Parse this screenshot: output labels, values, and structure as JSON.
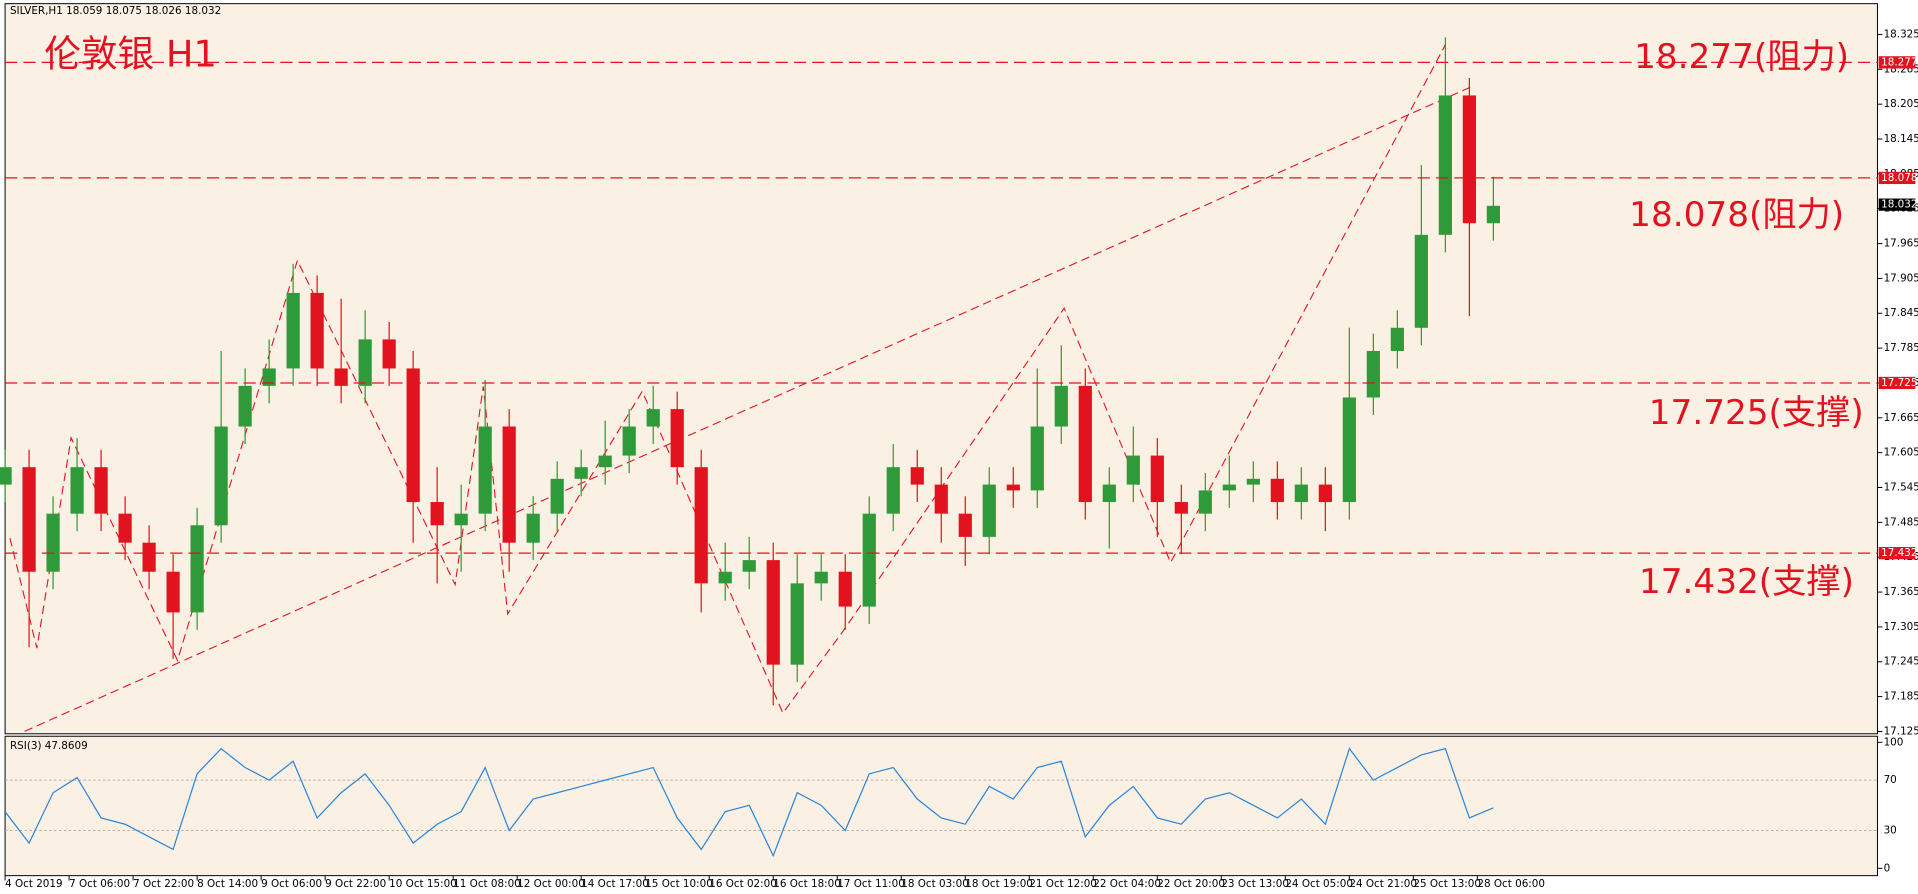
{
  "chart_data": [
    {
      "type": "candlestick",
      "header": "SILVER,H1  18.059 18.075 18.026 18.032",
      "title": "伦敦银 H1",
      "up_color": "#2e9a3a",
      "down_color": "#e3121f",
      "level_color": "#e3121f",
      "x": [
        0,
        6,
        12,
        18,
        24,
        30,
        36,
        42,
        48,
        54,
        60,
        66,
        72,
        78,
        84,
        90,
        96,
        102,
        108,
        114,
        120,
        126,
        132,
        138,
        144,
        150,
        156,
        162,
        168,
        174,
        180,
        186,
        192,
        198,
        204,
        210,
        216,
        222,
        228,
        234,
        240,
        246,
        252,
        258,
        264,
        270,
        276,
        282,
        288,
        294,
        300,
        306,
        312,
        318,
        324,
        330,
        336,
        342,
        348,
        354,
        360,
        366,
        372
      ],
      "open": [
        17.55,
        17.58,
        17.4,
        17.5,
        17.58,
        17.5,
        17.45,
        17.4,
        17.33,
        17.48,
        17.65,
        17.72,
        17.75,
        17.88,
        17.75,
        17.72,
        17.8,
        17.75,
        17.52,
        17.48,
        17.5,
        17.65,
        17.45,
        17.5,
        17.56,
        17.58,
        17.6,
        17.65,
        17.68,
        17.58,
        17.38,
        17.4,
        17.42,
        17.24,
        17.38,
        17.4,
        17.34,
        17.5,
        17.58,
        17.55,
        17.5,
        17.46,
        17.55,
        17.54,
        17.65,
        17.72,
        17.52,
        17.55,
        17.6,
        17.52,
        17.5,
        17.54,
        17.55,
        17.56,
        17.52,
        17.55,
        17.52,
        17.7,
        17.78,
        17.82,
        17.98,
        18.22,
        18.0
      ],
      "high": [
        17.61,
        17.61,
        17.53,
        17.63,
        17.61,
        17.53,
        17.48,
        17.43,
        17.51,
        17.78,
        17.75,
        17.8,
        17.93,
        17.91,
        17.87,
        17.85,
        17.83,
        17.78,
        17.58,
        17.55,
        17.73,
        17.68,
        17.53,
        17.59,
        17.61,
        17.66,
        17.68,
        17.72,
        17.71,
        17.61,
        17.45,
        17.46,
        17.45,
        17.43,
        17.43,
        17.43,
        17.53,
        17.62,
        17.61,
        17.58,
        17.53,
        17.58,
        17.58,
        17.75,
        17.79,
        17.75,
        17.58,
        17.65,
        17.63,
        17.55,
        17.57,
        17.6,
        17.59,
        17.59,
        17.58,
        17.58,
        17.82,
        17.81,
        17.85,
        18.1,
        18.32,
        18.25,
        18.08
      ],
      "low": [
        17.52,
        17.27,
        17.37,
        17.47,
        17.47,
        17.42,
        17.37,
        17.25,
        17.3,
        17.45,
        17.62,
        17.69,
        17.72,
        17.72,
        17.69,
        17.69,
        17.72,
        17.45,
        17.38,
        17.4,
        17.47,
        17.4,
        17.42,
        17.47,
        17.53,
        17.55,
        17.57,
        17.62,
        17.55,
        17.33,
        17.35,
        17.37,
        17.17,
        17.21,
        17.35,
        17.3,
        17.31,
        17.47,
        17.52,
        17.45,
        17.41,
        17.43,
        17.51,
        17.51,
        17.62,
        17.49,
        17.44,
        17.52,
        17.46,
        17.43,
        17.47,
        17.51,
        17.52,
        17.49,
        17.49,
        17.47,
        17.49,
        17.67,
        17.75,
        17.79,
        17.95,
        17.84,
        17.97
      ],
      "close": [
        17.58,
        17.4,
        17.5,
        17.58,
        17.5,
        17.45,
        17.4,
        17.33,
        17.48,
        17.65,
        17.72,
        17.75,
        17.88,
        17.75,
        17.72,
        17.8,
        17.75,
        17.52,
        17.48,
        17.5,
        17.65,
        17.45,
        17.5,
        17.56,
        17.58,
        17.6,
        17.65,
        17.68,
        17.58,
        17.38,
        17.4,
        17.42,
        17.24,
        17.38,
        17.4,
        17.34,
        17.5,
        17.58,
        17.55,
        17.5,
        17.46,
        17.55,
        17.54,
        17.65,
        17.72,
        17.52,
        17.55,
        17.6,
        17.52,
        17.5,
        17.54,
        17.55,
        17.56,
        17.52,
        17.55,
        17.52,
        17.7,
        17.78,
        17.82,
        17.98,
        18.22,
        18.0,
        18.03
      ],
      "current_price": 18.032,
      "levels": [
        {
          "value": 18.277,
          "label": "18.277(阻力)"
        },
        {
          "value": 18.078,
          "label": "18.078(阻力)"
        },
        {
          "value": 17.725,
          "label": "17.725(支撑)"
        },
        {
          "value": 17.432,
          "label": "17.432(支撑)"
        }
      ],
      "xlim": [
        0,
        468
      ],
      "xticks": [
        {
          "value": 0,
          "label": "4 Oct 2019"
        },
        {
          "value": 16,
          "label": "7 Oct 06:00"
        },
        {
          "value": 32,
          "label": "7 Oct 22:00"
        },
        {
          "value": 48,
          "label": "8 Oct 14:00"
        },
        {
          "value": 64,
          "label": "9 Oct 06:00"
        },
        {
          "value": 80,
          "label": "9 Oct 22:00"
        },
        {
          "value": 96,
          "label": "10 Oct 15:00"
        },
        {
          "value": 112,
          "label": "11 Oct 08:00"
        },
        {
          "value": 128,
          "label": "12 Oct 00:00"
        },
        {
          "value": 144,
          "label": "14 Oct 17:00"
        },
        {
          "value": 160,
          "label": "15 Oct 10:00"
        },
        {
          "value": 176,
          "label": "16 Oct 02:00"
        },
        {
          "value": 192,
          "label": "16 Oct 18:00"
        },
        {
          "value": 208,
          "label": "17 Oct 11:00"
        },
        {
          "value": 224,
          "label": "18 Oct 03:00"
        },
        {
          "value": 240,
          "label": "18 Oct 19:00"
        },
        {
          "value": 256,
          "label": "21 Oct 12:00"
        },
        {
          "value": 272,
          "label": "22 Oct 04:00"
        },
        {
          "value": 288,
          "label": "22 Oct 20:00"
        },
        {
          "value": 304,
          "label": "23 Oct 13:00"
        },
        {
          "value": 320,
          "label": "24 Oct 05:00"
        },
        {
          "value": 336,
          "label": "24 Oct 21:00"
        },
        {
          "value": 352,
          "label": "25 Oct 13:00"
        },
        {
          "value": 368,
          "label": "28 Oct 06:00"
        }
      ],
      "ylim": [
        17.121,
        18.378
      ],
      "yticks": [
        18.325,
        18.265,
        18.205,
        18.145,
        18.085,
        18.025,
        17.965,
        17.905,
        17.845,
        17.785,
        17.725,
        17.665,
        17.605,
        17.545,
        17.485,
        17.425,
        17.365,
        17.305,
        17.245,
        17.185,
        17.125
      ]
    },
    {
      "type": "line",
      "title": "RSI(3) 47.8609",
      "color": "#2a86d8",
      "x": [
        0,
        6,
        12,
        18,
        24,
        30,
        36,
        42,
        48,
        54,
        60,
        66,
        72,
        78,
        84,
        90,
        96,
        102,
        108,
        114,
        120,
        126,
        132,
        138,
        144,
        150,
        156,
        162,
        168,
        174,
        180,
        186,
        192,
        198,
        204,
        210,
        216,
        222,
        228,
        234,
        240,
        246,
        252,
        258,
        264,
        270,
        276,
        282,
        288,
        294,
        300,
        306,
        312,
        318,
        324,
        330,
        336,
        342,
        348,
        354,
        360,
        366,
        372
      ],
      "values": [
        45,
        20,
        60,
        72,
        40,
        35,
        25,
        15,
        75,
        95,
        80,
        70,
        85,
        40,
        60,
        75,
        50,
        20,
        35,
        45,
        80,
        30,
        55,
        60,
        65,
        70,
        75,
        80,
        40,
        15,
        45,
        50,
        10,
        60,
        50,
        30,
        75,
        80,
        55,
        40,
        35,
        65,
        55,
        80,
        85,
        25,
        50,
        65,
        40,
        35,
        55,
        60,
        50,
        40,
        55,
        35,
        95,
        70,
        80,
        90,
        95,
        40,
        48
      ],
      "xlim": [
        0,
        468
      ],
      "ylim": [
        0,
        100
      ],
      "yticks": [
        100,
        70,
        30,
        0
      ],
      "grid": true
    }
  ]
}
